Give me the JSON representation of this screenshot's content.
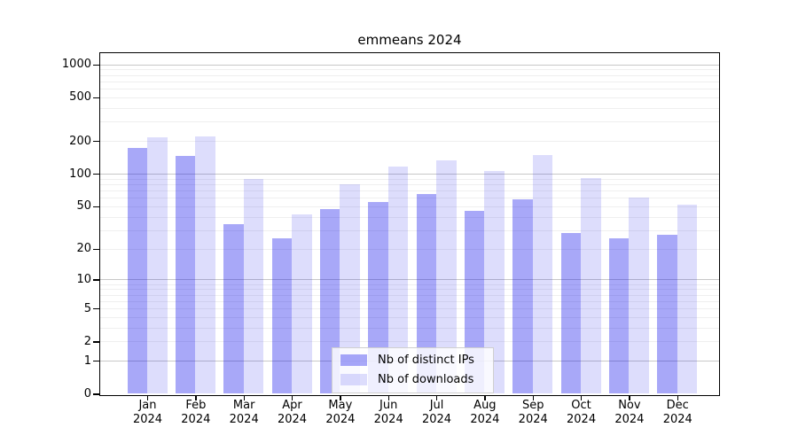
{
  "title": "emmeans 2024",
  "chart_data": {
    "type": "bar",
    "title": "emmeans 2024",
    "categories": [
      "Jan 2024",
      "Feb 2024",
      "Mar 2024",
      "Apr 2024",
      "May 2024",
      "Jun 2024",
      "Jul 2024",
      "Aug 2024",
      "Sep 2024",
      "Oct 2024",
      "Nov 2024",
      "Dec 2024"
    ],
    "series": [
      {
        "name": "Nb of distinct IPs",
        "color": "rgba(0,0,235,0.34)",
        "color_flat": "#a9a9f6",
        "values": [
          174,
          146,
          34,
          25,
          47,
          55,
          65,
          45,
          58,
          28,
          25,
          27
        ]
      },
      {
        "name": "Nb of downloads",
        "color": "rgba(0,0,235,0.135)",
        "color_flat": "#dcdcf8",
        "values": [
          215,
          220,
          89,
          42,
          80,
          116,
          132,
          106,
          150,
          92,
          60,
          52
        ]
      }
    ],
    "xlabel": "",
    "ylabel": "",
    "yscale": "log1p",
    "yticks": [
      1000,
      500,
      200,
      100,
      50,
      20,
      10,
      5,
      2,
      1,
      0
    ],
    "ylim": [
      0,
      1100
    ],
    "grid": "on",
    "legend_position": "bottom-center",
    "colors": {
      "decade_gridline": "#c8c8c8",
      "minor_gridline": "#efefef",
      "spine": "#000000",
      "text": "#000000",
      "background": "#ffffff"
    }
  }
}
